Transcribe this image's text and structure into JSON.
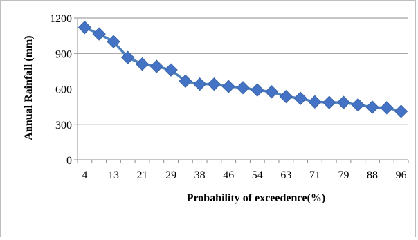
{
  "chart_data": {
    "type": "line",
    "title": "",
    "xlabel": "Probability of exceedence(%)",
    "ylabel": "Annual Rainfall (mm)",
    "ylim": [
      0,
      1200
    ],
    "yticks": [
      0,
      300,
      600,
      900,
      1200
    ],
    "grid": true,
    "legend": "none",
    "marker": "diamond",
    "series_color": "#4f81bd",
    "marker_color": "#4472c4",
    "x": [
      4,
      8,
      13,
      17,
      21,
      25,
      29,
      33,
      38,
      42,
      46,
      50,
      54,
      58,
      63,
      67,
      71,
      75,
      79,
      83,
      88,
      92,
      96
    ],
    "x_tick_labels": [
      "4",
      "13",
      "21",
      "29",
      "38",
      "46",
      "54",
      "63",
      "71",
      "79",
      "88",
      "96"
    ],
    "series": [
      {
        "values": [
          1120,
          1065,
          1000,
          865,
          810,
          790,
          760,
          665,
          640,
          640,
          620,
          610,
          590,
          575,
          535,
          520,
          490,
          485,
          485,
          465,
          445,
          440,
          410
        ]
      }
    ]
  }
}
